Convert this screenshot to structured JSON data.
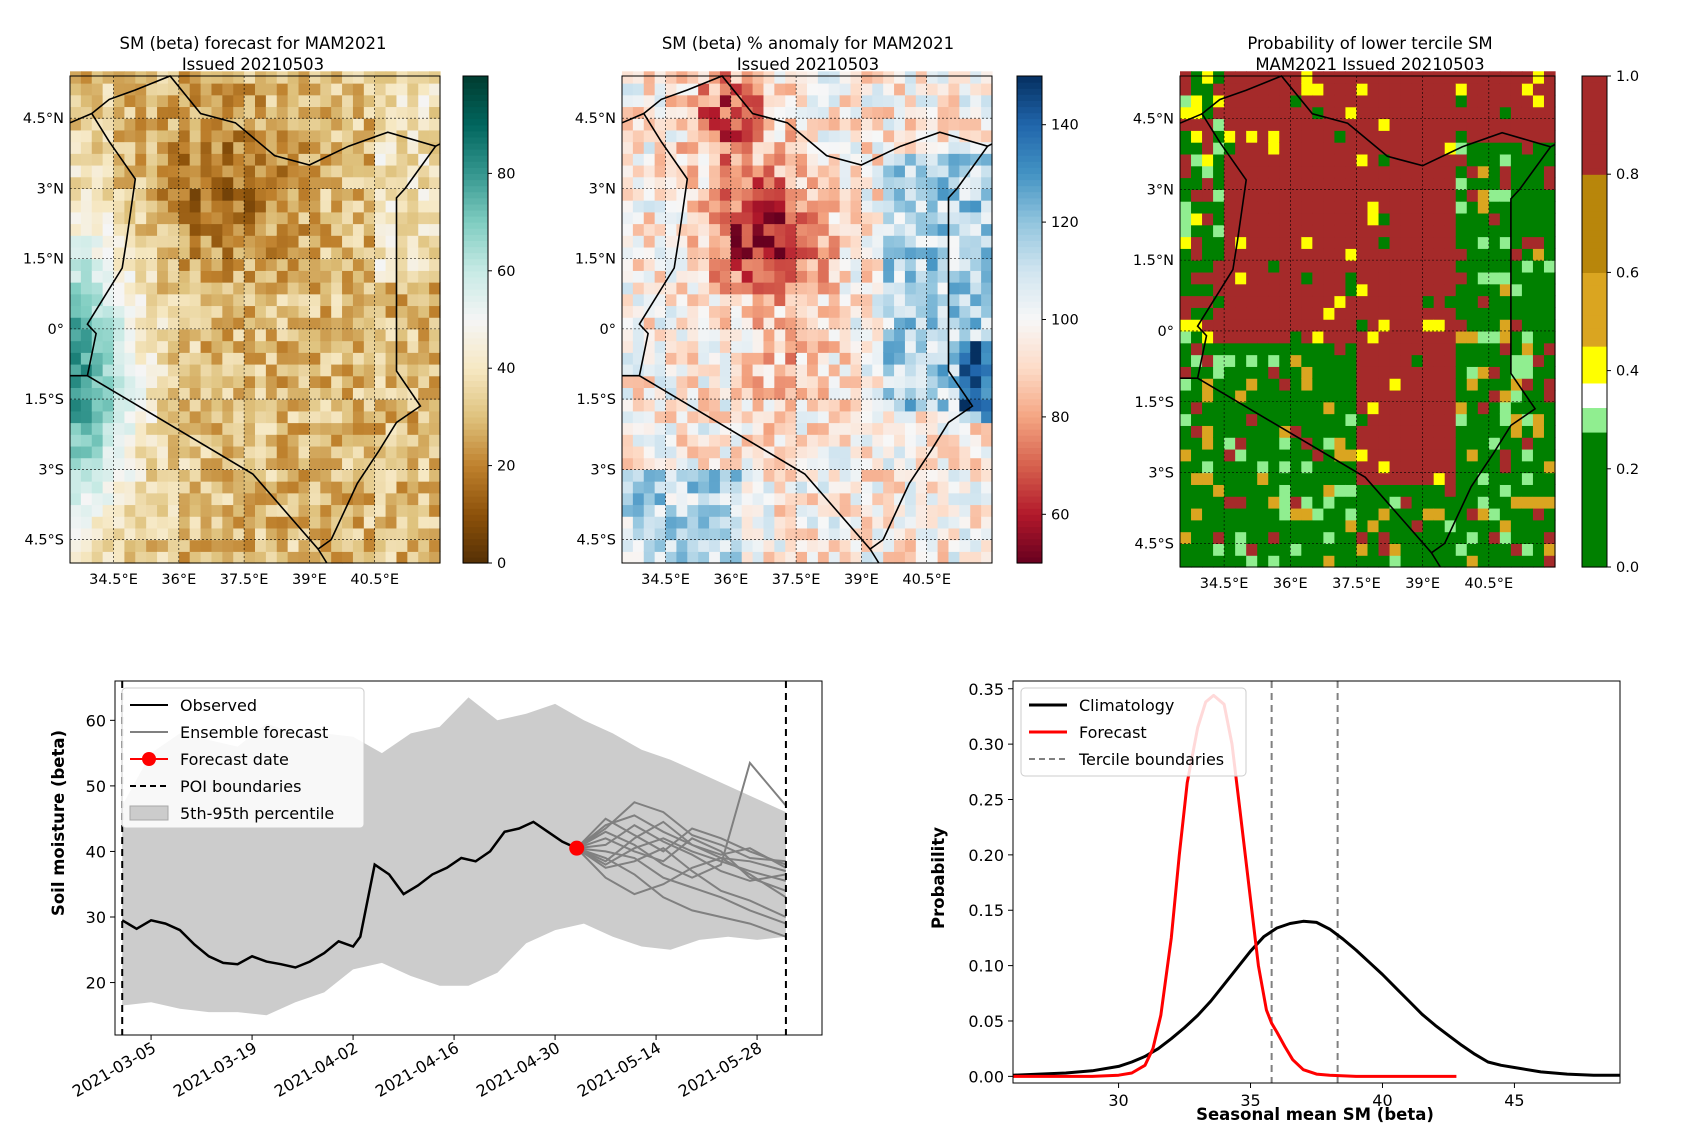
{
  "chart_data": [
    {
      "type": "heatmap",
      "title": "SM (beta) forecast for MAM2021",
      "subtitle": "Issued 20210503",
      "x_ticks": [
        "34.5°E",
        "36°E",
        "37.5°E",
        "39°E",
        "40.5°E"
      ],
      "y_ticks": [
        "4.5°N",
        "3°N",
        "1.5°N",
        "0°",
        "1.5°S",
        "3°S",
        "4.5°S"
      ],
      "x_range": [
        33.5,
        42.0
      ],
      "y_range": [
        -5.0,
        5.4
      ],
      "colorbar": {
        "ticks": [
          "0",
          "20",
          "40",
          "60",
          "80"
        ],
        "range": [
          0,
          100
        ],
        "colors": [
          "#543005",
          "#8c510a",
          "#bf812d",
          "#dfc27d",
          "#f6e8c3",
          "#f5f5f5",
          "#c7eae5",
          "#80cdc1",
          "#35978f",
          "#01665e",
          "#003c30"
        ]
      }
    },
    {
      "type": "heatmap",
      "title": "SM (beta) % anomaly for MAM2021",
      "subtitle": "Issued 20210503",
      "x_ticks": [
        "34.5°E",
        "36°E",
        "37.5°E",
        "39°E",
        "40.5°E"
      ],
      "y_ticks": [
        "4.5°N",
        "3°N",
        "1.5°N",
        "0°",
        "1.5°S",
        "3°S",
        "4.5°S"
      ],
      "x_range": [
        33.5,
        42.0
      ],
      "y_range": [
        -5.0,
        5.4
      ],
      "colorbar": {
        "ticks": [
          "60",
          "80",
          "100",
          "120",
          "140"
        ],
        "range": [
          50,
          150
        ],
        "colors": [
          "#67001f",
          "#b2182b",
          "#d6604d",
          "#f4a582",
          "#fddbc7",
          "#f7f7f7",
          "#d1e5f0",
          "#92c5de",
          "#4393c3",
          "#2166ac",
          "#053061"
        ]
      }
    },
    {
      "type": "heatmap",
      "title": "Probability of lower tercile SM",
      "subtitle": "MAM2021 Issued 20210503",
      "x_ticks": [
        "34.5°E",
        "36°E",
        "37.5°E",
        "39°E",
        "40.5°E"
      ],
      "y_ticks": [
        "4.5°N",
        "3°N",
        "1.5°N",
        "0°",
        "1.5°S",
        "3°S",
        "4.5°S"
      ],
      "x_range": [
        33.5,
        42.0
      ],
      "y_range": [
        -5.0,
        5.4
      ],
      "colorbar": {
        "ticks": [
          "0.0",
          "0.2",
          "0.4",
          "0.6",
          "0.8",
          "1.0"
        ],
        "range": [
          0,
          1
        ],
        "bands": [
          {
            "from": 0.0,
            "to": 0.28,
            "color": "#008000"
          },
          {
            "from": 0.28,
            "to": 0.33,
            "color": "#90ee90"
          },
          {
            "from": 0.33,
            "to": 0.38,
            "color": "#ffffff"
          },
          {
            "from": 0.38,
            "to": 0.45,
            "color": "#ffff00"
          },
          {
            "from": 0.45,
            "to": 0.6,
            "color": "#daa520"
          },
          {
            "from": 0.6,
            "to": 0.8,
            "color": "#b8860b"
          },
          {
            "from": 0.8,
            "to": 1.0,
            "color": "#a52a2a"
          }
        ]
      }
    },
    {
      "type": "line",
      "ylabel": "Soil moisture (beta)",
      "x_ticks": [
        "2021-03-05",
        "2021-03-19",
        "2021-04-02",
        "2021-04-16",
        "2021-04-30",
        "2021-05-14",
        "2021-05-28"
      ],
      "y_ticks": [
        "20",
        "30",
        "40",
        "50",
        "60"
      ],
      "xlim": [
        "2021-02-28",
        "2021-06-06"
      ],
      "ylim": [
        12,
        66
      ],
      "legend_position": "top-left",
      "legend": [
        "Observed",
        "Ensemble forecast",
        "Forecast date",
        "POI boundaries",
        "5th-95th percentile"
      ],
      "poi_boundaries": [
        "2021-03-01",
        "2021-06-01"
      ],
      "forecast_date": {
        "x": "2021-05-03",
        "y": 40.5
      },
      "observed": {
        "name": "Observed",
        "x": [
          "2021-03-01",
          "2021-03-03",
          "2021-03-05",
          "2021-03-07",
          "2021-03-09",
          "2021-03-11",
          "2021-03-13",
          "2021-03-15",
          "2021-03-17",
          "2021-03-19",
          "2021-03-21",
          "2021-03-23",
          "2021-03-25",
          "2021-03-27",
          "2021-03-29",
          "2021-03-31",
          "2021-04-02",
          "2021-04-03",
          "2021-04-05",
          "2021-04-07",
          "2021-04-09",
          "2021-04-11",
          "2021-04-13",
          "2021-04-15",
          "2021-04-17",
          "2021-04-19",
          "2021-04-21",
          "2021-04-23",
          "2021-04-25",
          "2021-04-27",
          "2021-04-29",
          "2021-05-01",
          "2021-05-03"
        ],
        "y": [
          29.5,
          28.2,
          29.5,
          29.0,
          28.0,
          25.8,
          24.0,
          23.0,
          22.8,
          24.0,
          23.2,
          22.8,
          22.3,
          23.2,
          24.5,
          26.3,
          25.5,
          27.0,
          38.0,
          36.5,
          33.5,
          34.8,
          36.5,
          37.5,
          39.0,
          38.5,
          40.0,
          43.0,
          43.5,
          44.5,
          43.0,
          41.5,
          40.5
        ]
      },
      "percentile_5th_95th": {
        "name": "5th-95th percentile",
        "x": [
          "2021-03-01",
          "2021-03-05",
          "2021-03-09",
          "2021-03-13",
          "2021-03-17",
          "2021-03-21",
          "2021-03-25",
          "2021-03-29",
          "2021-04-02",
          "2021-04-06",
          "2021-04-10",
          "2021-04-14",
          "2021-04-18",
          "2021-04-22",
          "2021-04-26",
          "2021-04-30",
          "2021-05-04",
          "2021-05-08",
          "2021-05-12",
          "2021-05-16",
          "2021-05-20",
          "2021-05-24",
          "2021-05-28",
          "2021-06-01"
        ],
        "low": [
          16.5,
          17.0,
          16.0,
          15.5,
          15.5,
          15.0,
          17.0,
          18.5,
          22.0,
          23.0,
          21.0,
          19.5,
          19.5,
          21.5,
          26.0,
          28.0,
          29.0,
          27.0,
          25.5,
          25.0,
          26.5,
          27.0,
          26.5,
          27.0
        ],
        "high": [
          47.0,
          55.0,
          58.0,
          57.0,
          56.0,
          59.5,
          58.0,
          58.0,
          57.5,
          55.0,
          58.0,
          59.0,
          63.5,
          60.0,
          61.0,
          62.5,
          60.0,
          58.0,
          55.5,
          54.0,
          52.0,
          50.0,
          48.0,
          46.0
        ]
      },
      "ensemble_forecast": {
        "name": "Ensemble forecast",
        "x": [
          "2021-05-03",
          "2021-05-07",
          "2021-05-11",
          "2021-05-15",
          "2021-05-19",
          "2021-05-23",
          "2021-05-27",
          "2021-06-01"
        ],
        "members": [
          [
            40.5,
            44.0,
            45.5,
            43.0,
            41.0,
            39.0,
            38.5,
            37.0
          ],
          [
            40.5,
            38.0,
            40.5,
            42.0,
            40.0,
            38.5,
            37.0,
            35.5
          ],
          [
            40.5,
            42.0,
            40.0,
            38.5,
            42.0,
            40.0,
            36.0,
            34.0
          ],
          [
            40.5,
            36.0,
            33.5,
            35.0,
            37.5,
            39.0,
            36.5,
            33.0
          ],
          [
            40.5,
            43.5,
            47.5,
            46.0,
            42.5,
            41.0,
            39.0,
            38.5
          ],
          [
            40.5,
            39.0,
            36.5,
            33.0,
            31.0,
            30.0,
            29.0,
            27.0
          ],
          [
            40.5,
            41.0,
            44.0,
            41.5,
            39.5,
            37.0,
            35.5,
            36.5
          ],
          [
            40.5,
            37.5,
            38.5,
            40.5,
            37.0,
            34.0,
            32.5,
            30.0
          ],
          [
            40.5,
            45.0,
            42.5,
            40.0,
            43.5,
            42.0,
            40.0,
            38.0
          ],
          [
            40.5,
            40.0,
            39.0,
            36.0,
            34.5,
            33.0,
            31.0,
            29.0
          ],
          [
            40.5,
            38.5,
            42.0,
            44.5,
            41.0,
            39.5,
            40.5,
            37.5
          ],
          [
            40.5,
            43.0,
            41.0,
            38.0,
            36.0,
            38.0,
            53.5,
            47.0
          ]
        ]
      }
    },
    {
      "type": "line",
      "xlabel": "Seasonal mean SM (beta)",
      "ylabel": "Probability",
      "x_ticks": [
        "30",
        "35",
        "40",
        "45"
      ],
      "y_ticks": [
        "0.00",
        "0.05",
        "0.10",
        "0.15",
        "0.20",
        "0.25",
        "0.30",
        "0.35"
      ],
      "xlim": [
        26.0,
        49.0
      ],
      "ylim": [
        -0.006,
        0.357
      ],
      "legend_position": "top-left",
      "legend": [
        "Climatology",
        "Forecast",
        "Tercile boundaries"
      ],
      "tercile_boundaries": [
        35.8,
        38.3
      ],
      "series": [
        {
          "name": "Climatology",
          "x": [
            26,
            27,
            28,
            29,
            30,
            30.5,
            31,
            31.5,
            32,
            32.5,
            33,
            33.5,
            34,
            34.5,
            35,
            35.5,
            36,
            36.5,
            37,
            37.5,
            38,
            38.5,
            39,
            39.5,
            40,
            40.5,
            41,
            41.5,
            42,
            42.5,
            43,
            43.5,
            44,
            44.5,
            45,
            46,
            47,
            48,
            49
          ],
          "y": [
            0.001,
            0.002,
            0.003,
            0.005,
            0.009,
            0.013,
            0.018,
            0.025,
            0.034,
            0.044,
            0.055,
            0.068,
            0.083,
            0.098,
            0.113,
            0.126,
            0.134,
            0.138,
            0.14,
            0.139,
            0.133,
            0.124,
            0.114,
            0.103,
            0.092,
            0.08,
            0.068,
            0.056,
            0.046,
            0.037,
            0.028,
            0.02,
            0.013,
            0.01,
            0.008,
            0.004,
            0.002,
            0.001,
            0.001
          ]
        },
        {
          "name": "Forecast",
          "x": [
            26,
            29,
            30,
            30.5,
            31,
            31.3,
            31.6,
            32,
            32.3,
            32.6,
            33,
            33.3,
            33.6,
            34,
            34.3,
            34.6,
            35,
            35.3,
            35.6,
            35.8,
            36,
            36.3,
            36.6,
            37,
            37.5,
            38,
            39,
            40,
            41,
            42,
            42.8
          ],
          "y": [
            0,
            0,
            0.001,
            0.003,
            0.01,
            0.025,
            0.055,
            0.125,
            0.2,
            0.265,
            0.315,
            0.338,
            0.344,
            0.336,
            0.3,
            0.24,
            0.16,
            0.1,
            0.06,
            0.048,
            0.04,
            0.027,
            0.015,
            0.006,
            0.002,
            0.001,
            0,
            0,
            0,
            0,
            0
          ]
        }
      ]
    }
  ]
}
